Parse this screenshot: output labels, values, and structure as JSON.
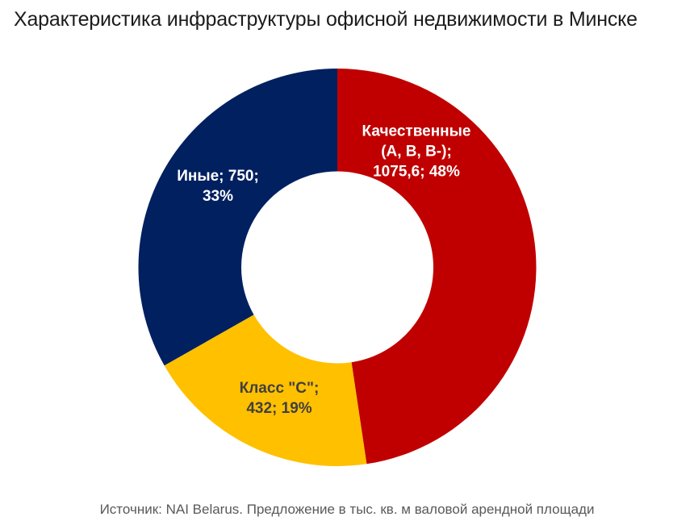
{
  "title": "Характеристика инфраструктуры офисной недвижимости в Минске",
  "footer": "Источник: NAI Belarus. Предложение в тыс. кв. м валовой арендной площади",
  "chart_data": {
    "type": "pie",
    "subtype": "donut",
    "title": "Характеристика инфраструктуры офисной недвижимости в Минске",
    "unit": "тыс. кв. м валовой арендной площади",
    "source": "NAI Belarus",
    "start_angle": "top",
    "direction": "clockwise",
    "inner_radius_ratio": 0.48,
    "legend": "none",
    "segments": [
      {
        "id": "kachestvennye",
        "name": "Качественные (А, В, В-)",
        "value": 1075.6,
        "percent": 48,
        "color": "#C00000",
        "label_color": "#FFFFFF",
        "label_lines": [
          "Качественные",
          "(А, В, В-);",
          "1075,6; 48%"
        ]
      },
      {
        "id": "klass-c",
        "name": "Класс \"С\"",
        "value": 432,
        "percent": 19,
        "color": "#FFC000",
        "label_color": "#404040",
        "label_lines": [
          "Класс \"С\";",
          "432; 19%"
        ]
      },
      {
        "id": "inye",
        "name": "Иные",
        "value": 750,
        "percent": 33,
        "color": "#002060",
        "label_color": "#FFFFFF",
        "label_lines": [
          "Иные; 750;",
          "33%"
        ]
      }
    ]
  }
}
